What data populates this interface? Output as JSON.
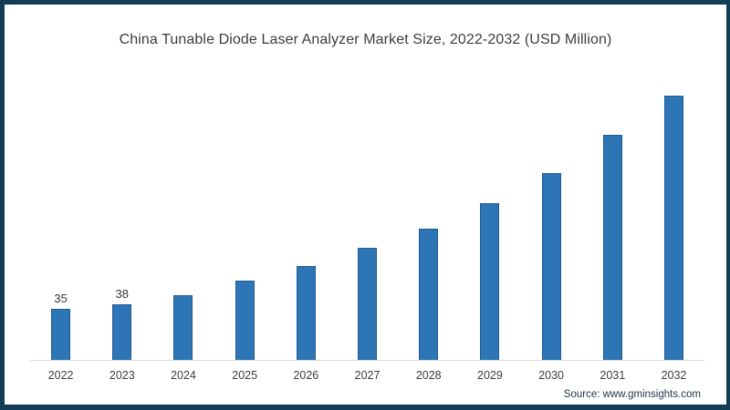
{
  "chart_data": {
    "type": "bar",
    "title": "China Tunable Diode Laser Analyzer Market Size, 2022-2032 (USD Million)",
    "categories": [
      "2022",
      "2023",
      "2024",
      "2025",
      "2026",
      "2027",
      "2028",
      "2029",
      "2030",
      "2031",
      "2032"
    ],
    "values": [
      35,
      38,
      44,
      54,
      64,
      76,
      89,
      106,
      126,
      152,
      184
    ],
    "value_labels": [
      "35",
      "38",
      "",
      "",
      "",
      "",
      "",
      "",
      "",
      "",
      ""
    ],
    "xlabel": "",
    "ylabel": "",
    "ylim": [
      0,
      190
    ],
    "grid": false,
    "legend": false,
    "bar_color": "#2e75b6",
    "bar_border_color": "#1f5c94",
    "axis_line_color": "#d9d9d9"
  },
  "source": {
    "text": "Source: www.gminsights.com"
  },
  "frame": {
    "border_color": "#123d54",
    "background_color": "#ffffff"
  }
}
